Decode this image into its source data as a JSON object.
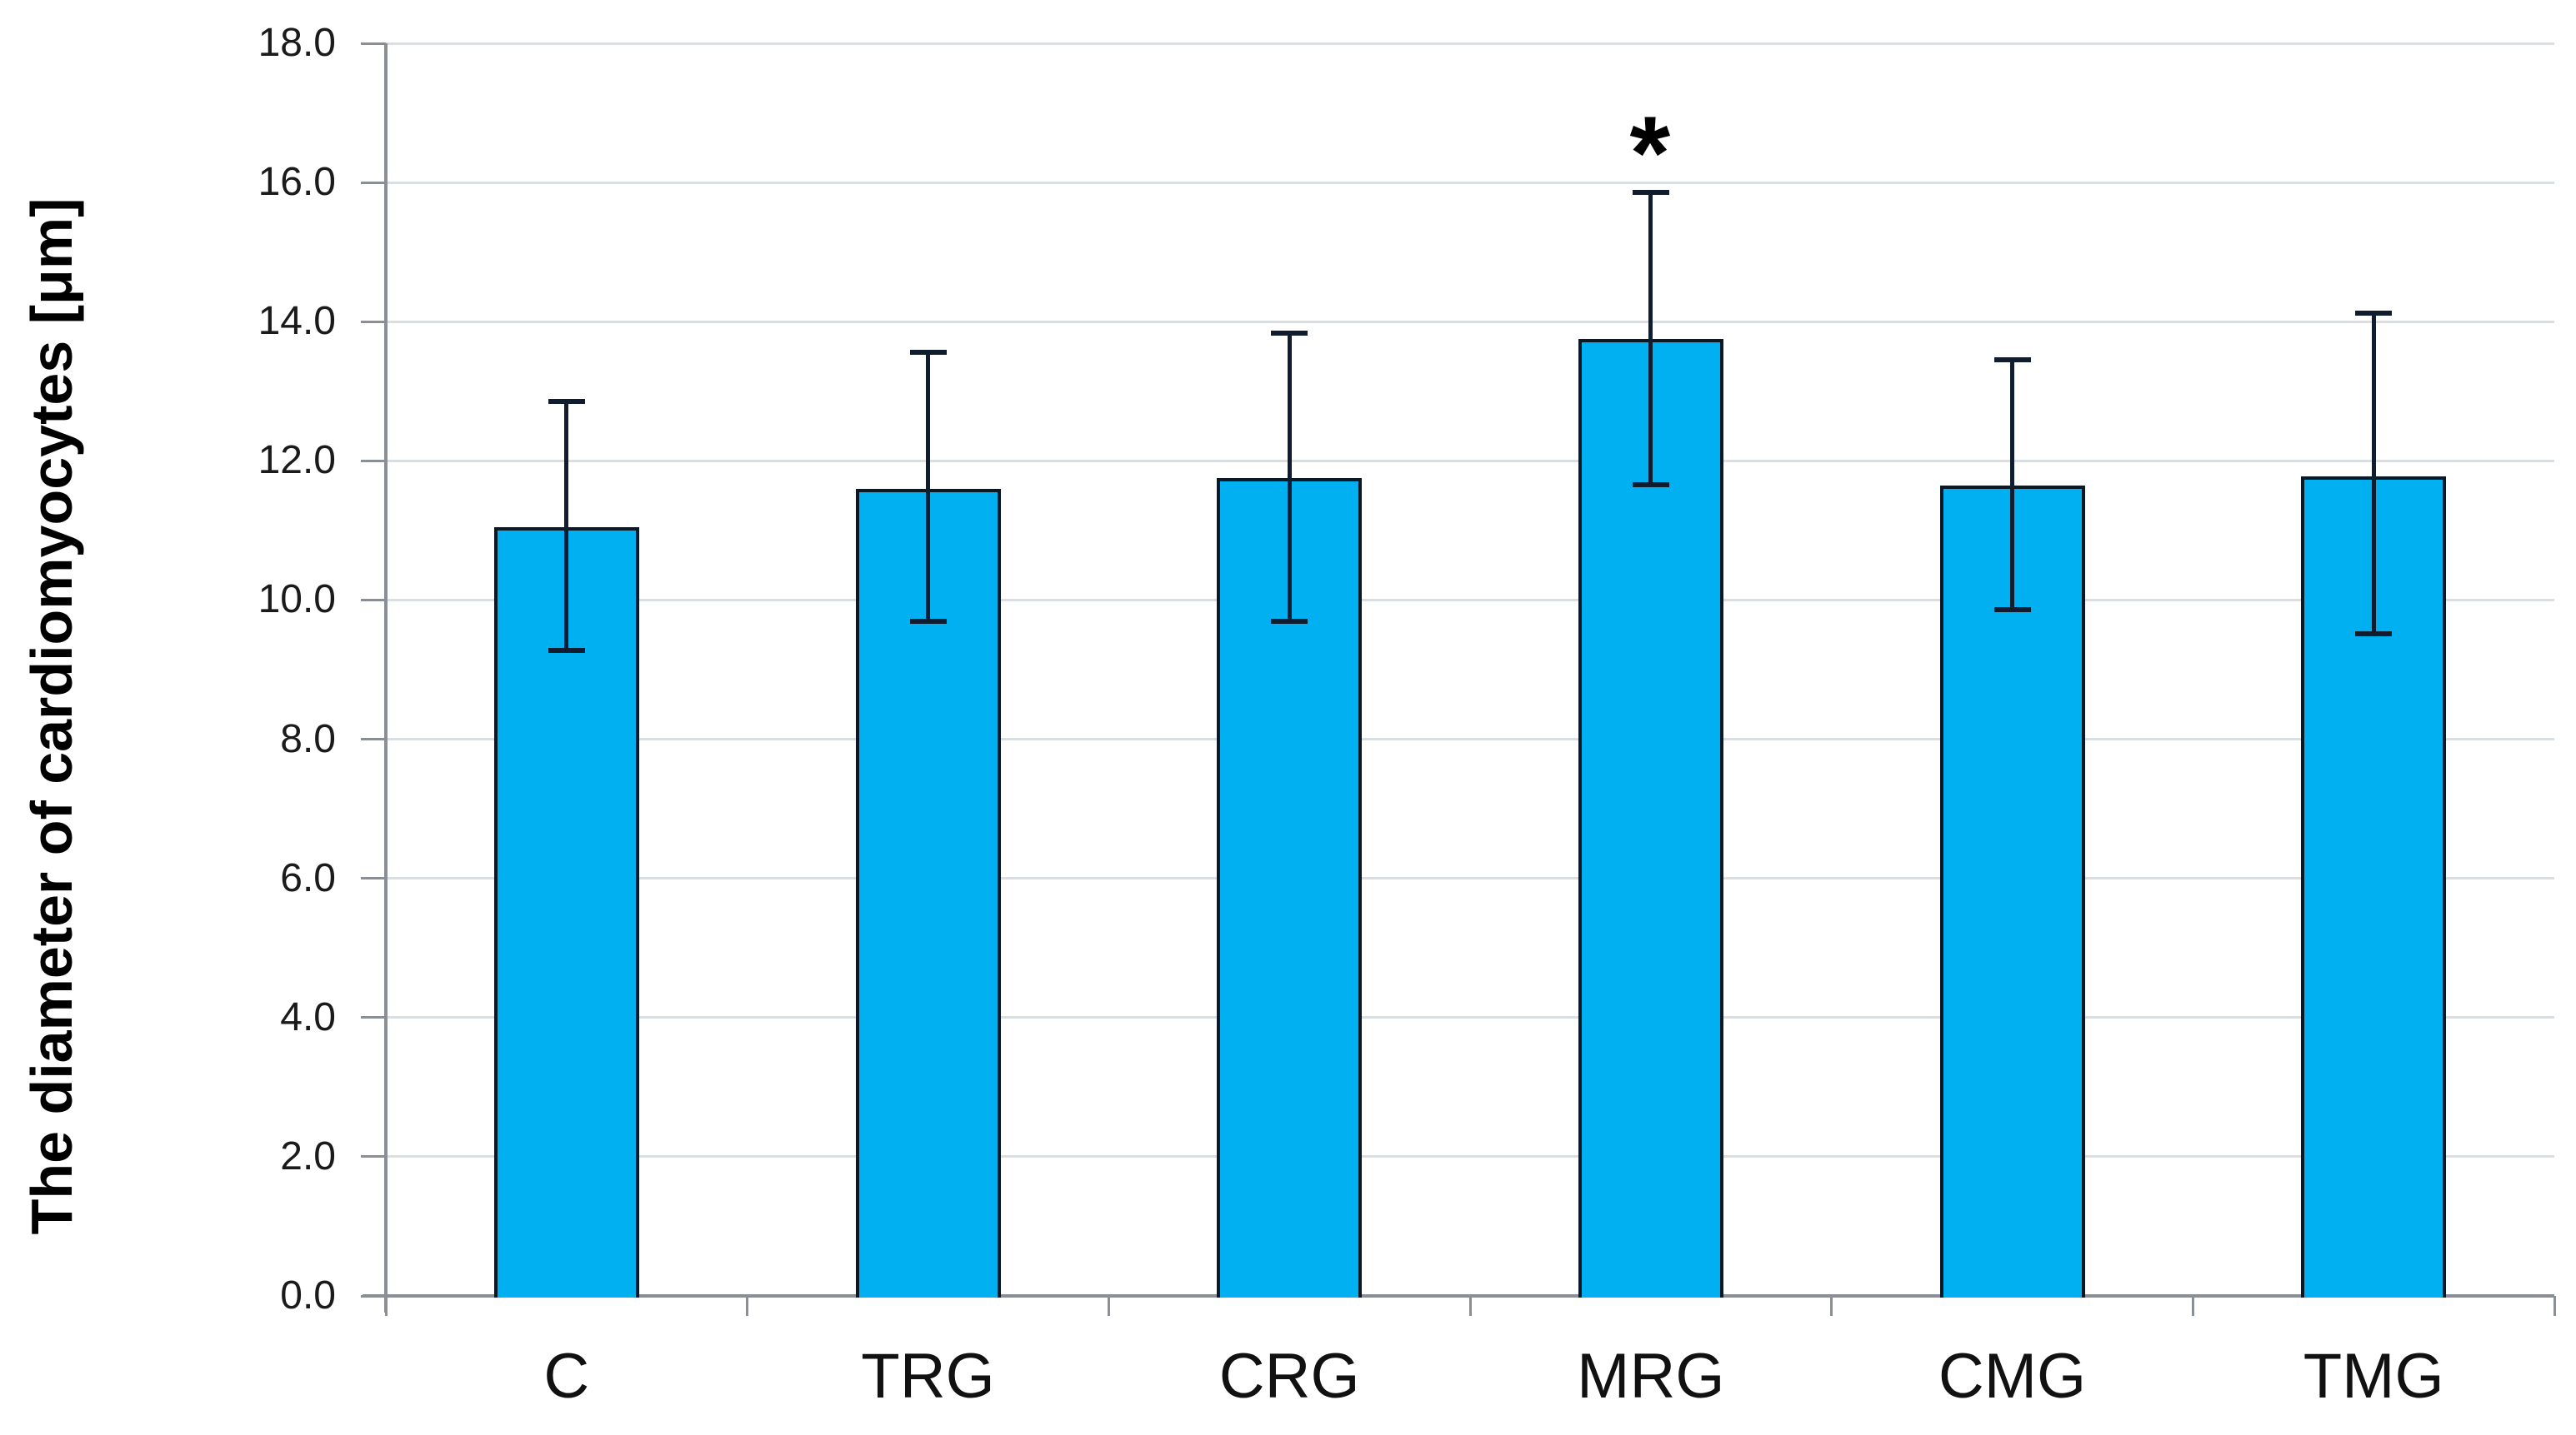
{
  "chart_data": {
    "type": "bar",
    "title": "",
    "xlabel": "",
    "ylabel": "The diameter of cardiomyocytes [μm]",
    "categories": [
      "C",
      "TRG",
      "CRG",
      "MRG",
      "CMG",
      "TMG"
    ],
    "values": [
      11.05,
      11.6,
      11.75,
      13.75,
      11.65,
      11.78
    ],
    "error_up": [
      1.8,
      1.96,
      2.08,
      2.11,
      1.8,
      2.34
    ],
    "error_down": [
      1.78,
      1.9,
      2.06,
      2.09,
      1.79,
      2.27
    ],
    "ylim": [
      0,
      18
    ],
    "ytick_step": 2,
    "ytick_labels": [
      "0.0",
      "2.0",
      "4.0",
      "6.0",
      "8.0",
      "10.0",
      "12.0",
      "14.0",
      "16.0",
      "18.0"
    ],
    "grid": true,
    "legend": null,
    "annotation_text": "*",
    "annotation_category": "MRG",
    "colors": {
      "bar_fill": "#00b0f0",
      "bar_border": "#0b1826",
      "error": "#101d2e",
      "gridline": "#d9dee3",
      "axis": "#8a8f96",
      "text": "#000000",
      "background": "#ffffff"
    }
  }
}
